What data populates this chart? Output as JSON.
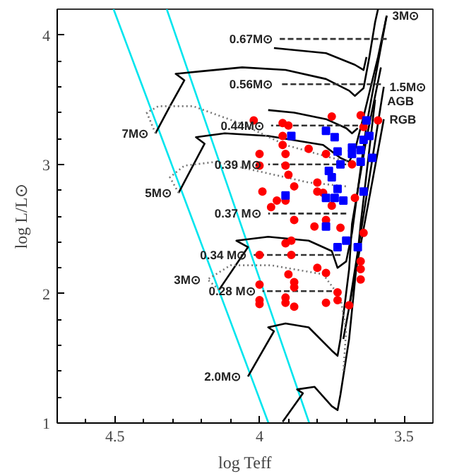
{
  "chart_data": {
    "type": "line",
    "xlabel": "log Teff",
    "ylabel": "log L/L⊙",
    "xlim": [
      4.7,
      3.4
    ],
    "ylim": [
      1,
      4.2
    ],
    "xticks": [
      {
        "value": 4.6,
        "label": null
      },
      4.5,
      {
        "value": 4.4,
        "label": null
      },
      {
        "value": 4.3,
        "label": null
      },
      {
        "value": 4.2,
        "label": null
      },
      {
        "value": 4.1,
        "label": null
      },
      4,
      {
        "value": 3.9,
        "label": null
      },
      {
        "value": 3.8,
        "label": null
      },
      {
        "value": 3.7,
        "label": null
      },
      {
        "value": 3.6,
        "label": null
      },
      3.5
    ],
    "yticks": [
      1,
      {
        "value": 1.2,
        "label": null
      },
      {
        "value": 1.4,
        "label": null
      },
      {
        "value": 1.6,
        "label": null
      },
      {
        "value": 1.8,
        "label": null
      },
      2,
      {
        "value": 2.2,
        "label": null
      },
      {
        "value": 2.4,
        "label": null
      },
      {
        "value": 2.6,
        "label": null
      },
      {
        "value": 2.8,
        "label": null
      },
      3,
      {
        "value": 3.2,
        "label": null
      },
      {
        "value": 3.4,
        "label": null
      },
      {
        "value": 3.6,
        "label": null
      },
      {
        "value": 3.8,
        "label": null
      },
      4
    ],
    "grid": false,
    "series": [
      {
        "color": "#00e5ee",
        "line_style": "solid",
        "x": [
          4.505,
          3.969
        ],
        "values": [
          4.2,
          1
        ]
      },
      {
        "color": "#00e5ee",
        "line_style": "solid",
        "x": [
          4.321,
          3.828
        ],
        "values": [
          4.2,
          1
        ]
      },
      {
        "color": "#000000",
        "line_style": "solid",
        "x": [
          4.36,
          4.31,
          4.26,
          4.29,
          4.2,
          4.06,
          3.91,
          3.77,
          3.69,
          3.67,
          3.64,
          3.62,
          3.6,
          3.59
        ],
        "values": [
          3.24,
          3.45,
          3.65,
          3.7,
          3.72,
          3.75,
          3.73,
          3.66,
          3.57,
          3.53,
          3.59,
          3.83,
          4.1,
          4.2
        ]
      },
      {
        "color": "#000000",
        "line_style": "solid",
        "x": [
          4.28,
          4.19,
          4.22,
          4.12,
          3.97,
          3.78,
          3.72,
          3.69,
          3.67,
          3.64,
          3.59,
          3.56
        ],
        "values": [
          2.78,
          3.16,
          3.21,
          3.24,
          3.22,
          3.15,
          3.05,
          3.02,
          3.11,
          3.37,
          3.83,
          4.15
        ]
      },
      {
        "color": "#000000",
        "line_style": "solid",
        "x": [
          4.14,
          4.04,
          4.08,
          3.97,
          3.83,
          3.75,
          3.73,
          3.7,
          3.68,
          3.63,
          3.56
        ],
        "values": [
          2.03,
          2.36,
          2.41,
          2.44,
          2.41,
          2.33,
          2.2,
          2.25,
          2.47,
          3.3,
          4.15
        ]
      },
      {
        "color": "#000000",
        "line_style": "solid",
        "x": [
          4.04,
          3.95,
          3.97,
          3.91,
          3.83,
          3.75,
          3.73,
          3.72,
          3.69,
          3.68,
          3.63,
          3.58
        ],
        "values": [
          1.36,
          1.71,
          1.74,
          1.77,
          1.74,
          1.56,
          1.52,
          1.65,
          2.19,
          2.54,
          3.2,
          3.75
        ]
      },
      {
        "color": "#000000",
        "line_style": "solid",
        "x": [
          3.92,
          3.85,
          3.87,
          3.81,
          3.75,
          3.73,
          3.72,
          3.69,
          3.65,
          3.6
        ],
        "values": [
          1.01,
          1.23,
          1.26,
          1.28,
          1.13,
          1.1,
          1.22,
          1.65,
          2.54,
          3.5
        ]
      },
      {
        "color": "#000000",
        "line_style": "solid",
        "x": [
          3.71,
          3.57
        ],
        "values": [
          1.65,
          3.35
        ]
      },
      {
        "color": "#000000",
        "line_style": "solid",
        "x": [
          3.69,
          3.578,
          3.57
        ],
        "values": [
          1.9,
          3.49,
          3.6
        ]
      },
      {
        "color": "#000000",
        "line_style": "solid",
        "x": [
          3.95,
          3.77,
          3.67,
          3.64,
          3.63
        ],
        "values": [
          3.9,
          3.86,
          3.77,
          3.73,
          3.83
        ]
      },
      {
        "color": "#000000",
        "line_style": "solid",
        "x": [
          3.97,
          3.88,
          3.77,
          3.7,
          3.68,
          3.66
        ],
        "values": [
          3.42,
          3.4,
          3.35,
          3.28,
          3.24,
          3.28
        ]
      },
      {
        "color": "#777777",
        "line_style": "dotted",
        "x": [
          4.36,
          4.39,
          4.35,
          4.23,
          4.07,
          3.91,
          3.75,
          3.69
        ],
        "values": [
          3.24,
          3.4,
          3.45,
          3.45,
          3.32,
          3.15,
          3.05,
          3.02
        ]
      },
      {
        "color": "#777777",
        "line_style": "dotted",
        "x": [
          4.28,
          4.31,
          4.26,
          4.15,
          3.99,
          3.83,
          3.7
        ],
        "values": [
          2.78,
          2.9,
          2.99,
          3.02,
          2.94,
          2.86,
          2.83
        ]
      },
      {
        "color": "#777777",
        "line_style": "dotted",
        "x": [
          4.14,
          4.18,
          4.1,
          3.96,
          3.78,
          3.72,
          3.7,
          3.71
        ],
        "values": [
          2.03,
          2.11,
          2.22,
          2.22,
          2.15,
          1.97,
          1.72,
          1.4
        ]
      },
      {
        "color": "#333333",
        "line_style": "dashed",
        "x": [
          3.56,
          3.93
        ],
        "values": [
          3.97,
          3.97
        ]
      },
      {
        "color": "#333333",
        "line_style": "dashed",
        "x": [
          3.58,
          3.93
        ],
        "values": [
          3.62,
          3.62
        ]
      },
      {
        "color": "#333333",
        "line_style": "dashed",
        "x": [
          3.63,
          3.96
        ],
        "values": [
          3.3,
          3.3
        ]
      },
      {
        "color": "#333333",
        "line_style": "dashed",
        "x": [
          3.7,
          3.97
        ],
        "values": [
          3.0,
          3.0
        ]
      },
      {
        "color": "#333333",
        "line_style": "dashed",
        "x": [
          3.7,
          3.97
        ],
        "values": [
          2.62,
          2.62
        ]
      },
      {
        "color": "#333333",
        "line_style": "dashed",
        "x": [
          3.72,
          4.02
        ],
        "values": [
          2.3,
          2.3
        ]
      },
      {
        "color": "#333333",
        "line_style": "dashed",
        "x": [
          3.72,
          3.99
        ],
        "values": [
          2.02,
          2.02
        ]
      },
      {
        "type": "scatter",
        "marker": "circle",
        "color": "#ff0000",
        "x": [
          4.02,
          3.92,
          3.9,
          3.75,
          3.92,
          3.92,
          4.0,
          4.0,
          3.91,
          3.91,
          3.83,
          3.77,
          3.99,
          3.94,
          3.96,
          3.91,
          3.9,
          3.88,
          3.8,
          3.8,
          3.78,
          3.75,
          3.68,
          3.65,
          3.64,
          3.59,
          3.88,
          3.77,
          3.72,
          3.81,
          3.67,
          3.91,
          3.89,
          4.0,
          3.89,
          3.9,
          3.8,
          3.77,
          3.88,
          3.88,
          4.0,
          4.0,
          4.0,
          3.91,
          3.91,
          3.88,
          3.77,
          3.73,
          3.73,
          3.69,
          3.65,
          3.65,
          3.65,
          3.64
        ],
        "values": [
          3.34,
          3.32,
          3.3,
          3.37,
          3.22,
          3.15,
          3.08,
          2.99,
          3.08,
          2.99,
          3.12,
          3.08,
          2.79,
          2.72,
          2.67,
          2.72,
          2.92,
          2.83,
          2.86,
          2.79,
          2.78,
          2.68,
          3.0,
          3.38,
          3.29,
          3.34,
          2.57,
          2.57,
          2.51,
          2.52,
          2.74,
          2.39,
          2.41,
          2.3,
          2.3,
          2.15,
          2.2,
          2.16,
          2.09,
          2.05,
          2.07,
          1.95,
          1.92,
          1.97,
          1.93,
          1.9,
          1.93,
          2.01,
          1.95,
          1.91,
          2.25,
          2.19,
          2.11,
          2.47
        ]
      },
      {
        "type": "scatter",
        "marker": "square",
        "color": "#0000ff",
        "x": [
          3.89,
          3.77,
          3.74,
          3.73,
          3.68,
          3.63,
          3.64,
          3.65,
          3.62,
          3.72,
          3.75,
          3.73,
          3.77,
          3.64,
          3.91,
          3.68,
          3.65,
          3.61,
          3.76,
          3.74,
          3.71,
          3.77,
          3.73,
          3.66,
          3.7
        ],
        "values": [
          3.22,
          3.26,
          3.21,
          3.1,
          3.08,
          3.34,
          3.19,
          3.11,
          3.22,
          3.0,
          2.9,
          2.81,
          2.74,
          2.79,
          2.76,
          3.13,
          3.02,
          3.05,
          2.95,
          2.74,
          2.72,
          2.52,
          2.36,
          2.36,
          2.41
        ]
      }
    ],
    "annotations": [
      {
        "text": "0.67M⊙",
        "x": 3.93,
        "y": 3.97
      },
      {
        "text": "0.56M⊙",
        "x": 3.93,
        "y": 3.62
      },
      {
        "text": "0.44M⊙",
        "x": 3.96,
        "y": 3.3
      },
      {
        "text": "0.39 M⊙",
        "x": 3.97,
        "y": 3.0
      },
      {
        "text": "0.37 M⊙",
        "x": 3.97,
        "y": 2.62
      },
      {
        "text": "0.34 M⊙",
        "x": 4.02,
        "y": 2.3
      },
      {
        "text": "0.28 M⊙",
        "x": 3.99,
        "y": 2.02
      },
      {
        "text": "7M⊙",
        "x": 4.36,
        "y": 3.24
      },
      {
        "text": "5M⊙",
        "x": 4.28,
        "y": 2.78
      },
      {
        "text": "3M⊙",
        "x": 4.18,
        "y": 2.11
      },
      {
        "text": "2.0M⊙",
        "x": 4.04,
        "y": 1.36
      },
      {
        "text": "3M⊙",
        "x": 3.56,
        "y": 4.15
      },
      {
        "text": "1.5M⊙",
        "x": 3.57,
        "y": 3.6
      },
      {
        "text": "AGB",
        "x": 3.578,
        "y": 3.49
      },
      {
        "text": "RGB",
        "x": 3.57,
        "y": 3.35
      }
    ]
  }
}
